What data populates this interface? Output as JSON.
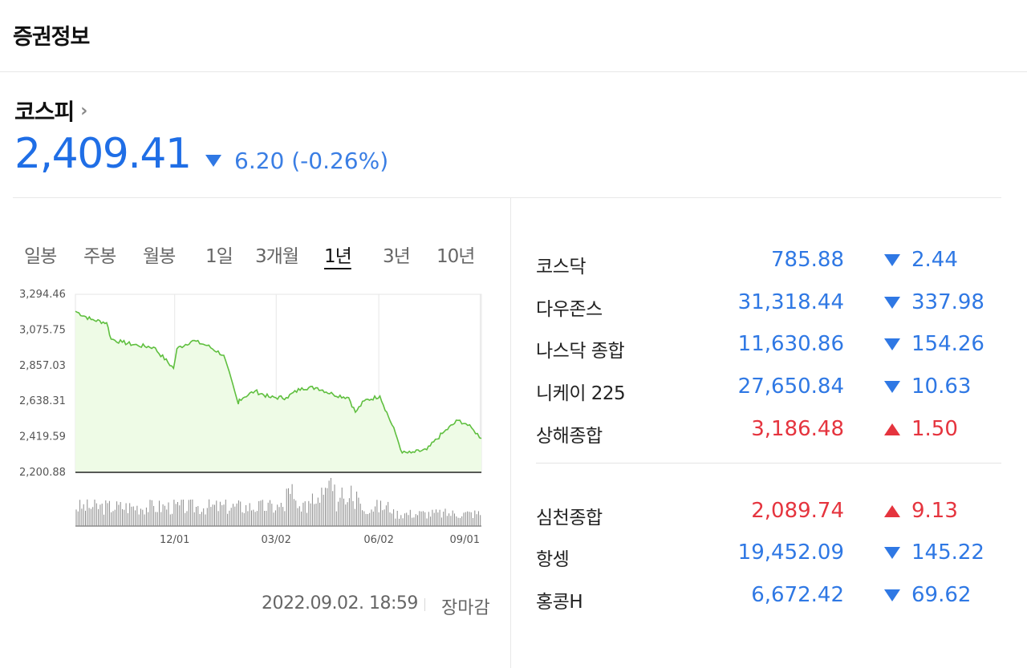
{
  "section": {
    "title": "증권정보"
  },
  "index": {
    "name": "코스피",
    "chevron": "›",
    "value": "2,409.41",
    "direction": "down",
    "change": "6.20 (-0.26%)"
  },
  "periods": {
    "items": [
      "일봉",
      "주봉",
      "월봉",
      "1일",
      "3개월",
      "1년",
      "3년",
      "10년"
    ],
    "selected": "1년"
  },
  "chart_data": {
    "type": "line",
    "title": "",
    "xlabel": "",
    "ylabel": "",
    "y_ticks": [
      "3,294.46",
      "3,075.75",
      "2,857.03",
      "2,638.31",
      "2,419.59",
      "2,200.88"
    ],
    "x_ticks": [
      "12/01",
      "03/02",
      "06/02",
      "09/01"
    ],
    "ylim": [
      2200.88,
      3294.46
    ],
    "x": [
      "2021-09-03",
      "2021-09-17",
      "2021-10-01",
      "2021-10-05",
      "2021-10-15",
      "2021-10-29",
      "2021-11-12",
      "2021-11-30",
      "2021-12-03",
      "2021-12-17",
      "2021-12-30",
      "2022-01-14",
      "2022-01-27",
      "2022-01-28",
      "2022-02-11",
      "2022-02-25",
      "2022-03-11",
      "2022-03-25",
      "2022-04-08",
      "2022-04-22",
      "2022-05-06",
      "2022-05-12",
      "2022-05-20",
      "2022-06-03",
      "2022-06-17",
      "2022-06-23",
      "2022-07-01",
      "2022-07-15",
      "2022-07-29",
      "2022-08-12",
      "2022-08-19",
      "2022-08-26",
      "2022-09-02"
    ],
    "values": [
      3190,
      3140,
      3120,
      3019,
      3000,
      2980,
      2970,
      2840,
      2960,
      3010,
      2980,
      2920,
      2620,
      2650,
      2700,
      2660,
      2660,
      2720,
      2720,
      2680,
      2660,
      2570,
      2640,
      2670,
      2440,
      2320,
      2320,
      2340,
      2440,
      2520,
      2500,
      2460,
      2409
    ],
    "volume": "relative daily trading volume shown as bars",
    "grid": true,
    "legend": "none",
    "colors": {
      "line": "#5fbf3f",
      "fill": "#eefbe6",
      "axis": "#222222",
      "grid": "#e6e6e6",
      "volume": "#8a8a8a"
    }
  },
  "meta": {
    "timestamp": "2022.09.02. 18:59",
    "status": "장마감"
  },
  "markets": [
    {
      "name": "코스닥",
      "value": "785.88",
      "direction": "down",
      "change": "2.44"
    },
    {
      "name": "다우존스",
      "value": "31,318.44",
      "direction": "down",
      "change": "337.98"
    },
    {
      "name": "나스닥 종합",
      "value": "11,630.86",
      "direction": "down",
      "change": "154.26"
    },
    {
      "name": "니케이 225",
      "value": "27,650.84",
      "direction": "down",
      "change": "10.63"
    },
    {
      "name": "상해종합",
      "value": "3,186.48",
      "direction": "up",
      "change": "1.50"
    },
    {
      "name": "심천종합",
      "value": "2,089.74",
      "direction": "up",
      "change": "9.13"
    },
    {
      "name": "항셍",
      "value": "19,452.09",
      "direction": "down",
      "change": "145.22"
    },
    {
      "name": "홍콩H",
      "value": "6,672.42",
      "direction": "down",
      "change": "69.62"
    }
  ],
  "colors": {
    "up": "#e5343e",
    "down": "#2f78e4",
    "index_value": "#1f6ee6"
  }
}
